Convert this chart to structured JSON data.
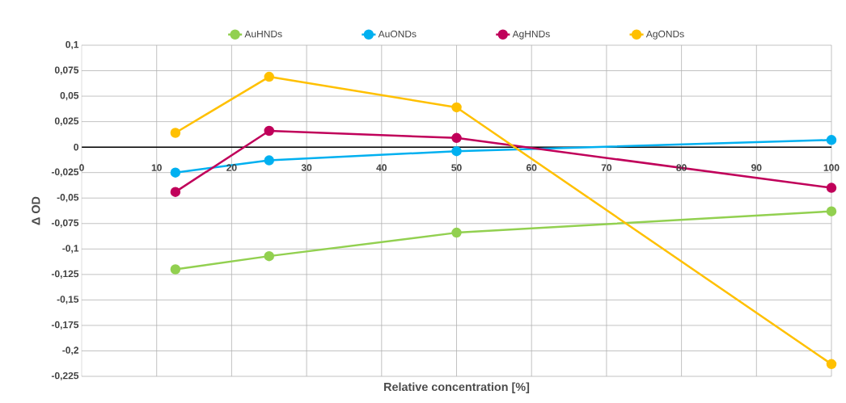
{
  "chart_data": {
    "type": "line",
    "xlabel": "Relative concentration [%]",
    "ylabel": "Δ OD",
    "x": [
      12.5,
      25,
      50,
      100
    ],
    "series": [
      {
        "name": "AuHNDs",
        "color": "#92d050",
        "values": [
          -0.12,
          -0.107,
          -0.084,
          -0.063
        ]
      },
      {
        "name": "AuONDs",
        "color": "#00b0f0",
        "values": [
          -0.025,
          -0.013,
          -0.004,
          0.007
        ]
      },
      {
        "name": "AgHNDs",
        "color": "#c0005a",
        "values": [
          -0.044,
          0.016,
          0.009,
          -0.04
        ]
      },
      {
        "name": "AgONDs",
        "color": "#ffc000",
        "values": [
          0.014,
          0.069,
          0.039,
          -0.213
        ]
      }
    ],
    "xlim": [
      0,
      100
    ],
    "xticks": [
      0,
      10,
      20,
      30,
      40,
      50,
      60,
      70,
      80,
      90,
      100
    ],
    "ylim": [
      -0.225,
      0.1
    ],
    "yticks": [
      {
        "value": 0.1,
        "label": "0,1"
      },
      {
        "value": 0.075,
        "label": "0,075"
      },
      {
        "value": 0.05,
        "label": "0,05"
      },
      {
        "value": 0.025,
        "label": "0,025"
      },
      {
        "value": 0,
        "label": "0"
      },
      {
        "value": -0.025,
        "label": "-0,025"
      },
      {
        "value": -0.05,
        "label": "-0,05"
      },
      {
        "value": -0.075,
        "label": "-0,075"
      },
      {
        "value": -0.1,
        "label": "-0,1"
      },
      {
        "value": -0.125,
        "label": "-0,125"
      },
      {
        "value": -0.15,
        "label": "-0,15"
      },
      {
        "value": -0.175,
        "label": "-0,175"
      },
      {
        "value": -0.2,
        "label": "-0,2"
      },
      {
        "value": -0.225,
        "label": "-0,225"
      }
    ],
    "grid": true,
    "legend": "top",
    "marker": "circle"
  }
}
